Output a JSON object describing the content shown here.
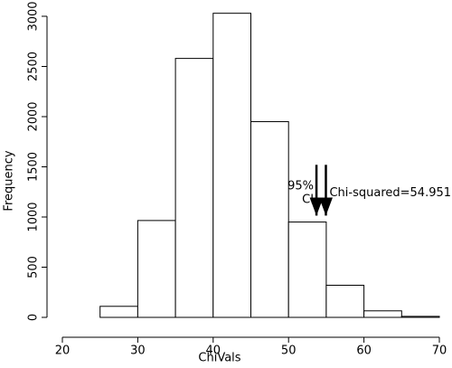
{
  "chart_data": {
    "type": "histogram",
    "x_label": "ChiVals",
    "y_label": "Frequency",
    "bins": [
      20,
      25,
      30,
      35,
      40,
      45,
      50,
      55,
      60,
      65,
      70
    ],
    "values": [
      0,
      110,
      965,
      2580,
      3030,
      1950,
      950,
      320,
      65,
      10
    ],
    "color": "#ffffff",
    "xlim": [
      20,
      70
    ],
    "xticks": [
      20,
      30,
      40,
      50,
      60,
      70
    ],
    "ylim": [
      0,
      3000
    ],
    "yticks": [
      0,
      500,
      1000,
      1500,
      2000,
      2500,
      3000
    ],
    "annotations": [
      {
        "x": 53.7,
        "y_top": 1520,
        "y_bottom": 960,
        "lines": [
          "95%",
          "CI"
        ]
      },
      {
        "x": 54.951,
        "y_top": 1520,
        "y_bottom": 960,
        "lines": [
          "Chi-squared=54.951"
        ]
      }
    ]
  }
}
